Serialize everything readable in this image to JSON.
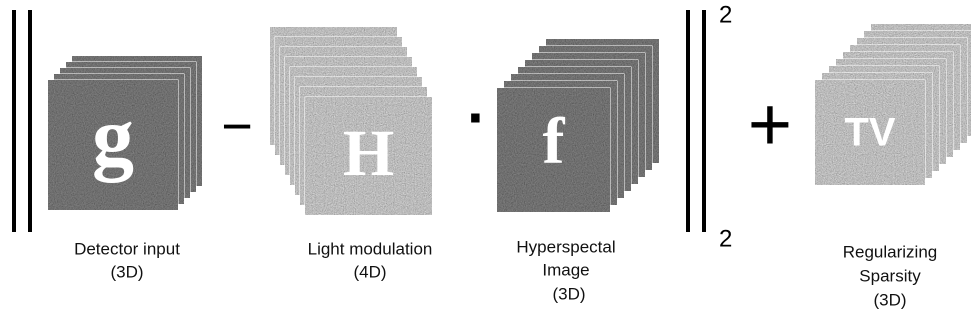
{
  "terms": [
    {
      "symbol": "g",
      "label": [
        "Detector input",
        "(3D)"
      ]
    },
    {
      "symbol": "H",
      "label": [
        "Light modulation",
        "(4D)"
      ]
    },
    {
      "symbol": "f",
      "label": [
        "Hyperspectal",
        "Image",
        "(3D)"
      ]
    },
    {
      "symbol": "TV",
      "label": [
        "Regularizing",
        "Sparsity",
        "(3D)"
      ]
    }
  ],
  "operators": [
    "−",
    "·",
    "+"
  ],
  "norm": {
    "superscript": "2",
    "subscript": "2"
  }
}
